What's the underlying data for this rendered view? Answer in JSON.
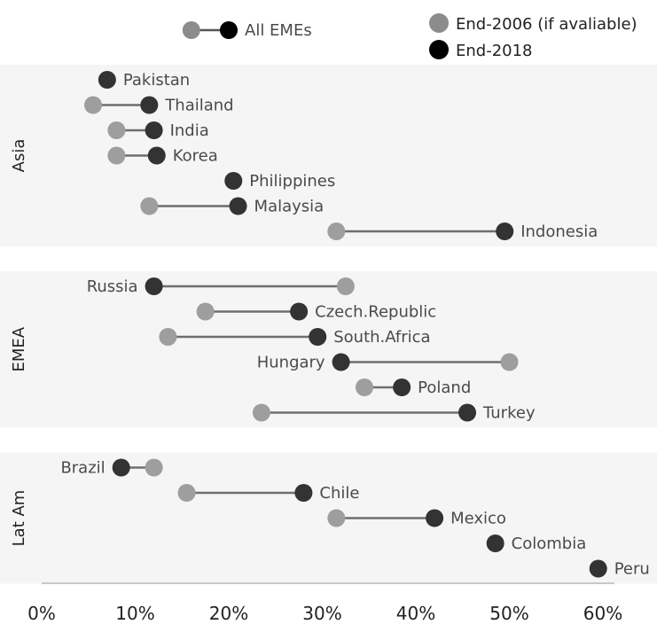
{
  "chart_data": {
    "type": "dumbbell",
    "series": [
      {
        "name": "End-2006 (if avaliable)",
        "color": "#9e9e9e"
      },
      {
        "name": "End-2018",
        "color": "#333333"
      }
    ],
    "legend_colors": {
      "end_2006": "#8c8c8c",
      "end_2018": "#000000"
    },
    "summary": {
      "label": "All EMEs",
      "start": 16,
      "end": 20
    },
    "groups": [
      {
        "name": "Asia",
        "items": [
          {
            "label": "Pakistan",
            "start": null,
            "end": 7
          },
          {
            "label": "Thailand",
            "start": 5.5,
            "end": 11.5
          },
          {
            "label": "India",
            "start": 8,
            "end": 12
          },
          {
            "label": "Korea",
            "start": 8,
            "end": 12.3
          },
          {
            "label": "Philippines",
            "start": null,
            "end": 20.5
          },
          {
            "label": "Malaysia",
            "start": 11.5,
            "end": 21
          },
          {
            "label": "Indonesia",
            "start": 31.5,
            "end": 49.5
          }
        ]
      },
      {
        "name": "EMEA",
        "items": [
          {
            "label": "Russia",
            "start": 32.5,
            "end": 12
          },
          {
            "label": "Czech.Republic",
            "start": 17.5,
            "end": 27.5
          },
          {
            "label": "South.Africa",
            "start": 13.5,
            "end": 29.5
          },
          {
            "label": "Hungary",
            "start": 50,
            "end": 32
          },
          {
            "label": "Poland",
            "start": 34.5,
            "end": 38.5
          },
          {
            "label": "Turkey",
            "start": 23.5,
            "end": 45.5
          }
        ]
      },
      {
        "name": "Lat Am",
        "items": [
          {
            "label": "Brazil",
            "start": 12,
            "end": 8.5
          },
          {
            "label": "Chile",
            "start": 15.5,
            "end": 28
          },
          {
            "label": "Mexico",
            "start": 31.5,
            "end": 42
          },
          {
            "label": "Colombia",
            "start": null,
            "end": 48.5
          },
          {
            "label": "Peru",
            "start": null,
            "end": 59.5
          }
        ]
      }
    ],
    "x_ticks": [
      "0%",
      "10%",
      "20%",
      "30%",
      "40%",
      "50%",
      "60%"
    ],
    "xlim": [
      0,
      60
    ],
    "grid": false,
    "legend_position": "top-right"
  }
}
